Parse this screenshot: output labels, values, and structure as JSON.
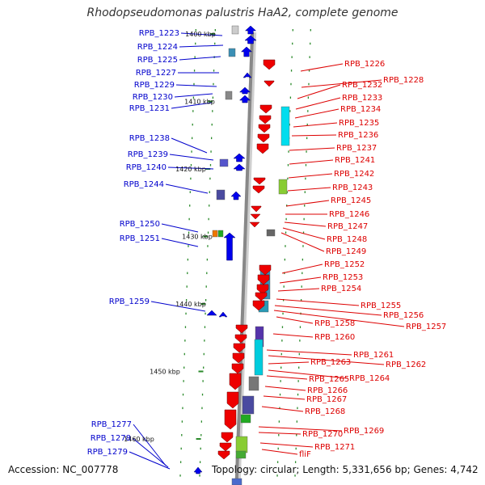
{
  "title": "Rhodopseudomonas palustris HaA2, complete genome",
  "accession": "Accession: NC_007778",
  "topology": "Topology: circular; Length: 5,331,656 bp; Genes: 4,742",
  "colors": {
    "forward": "#0000ee",
    "reverse": "#ee0000",
    "backbone": "#888888",
    "tick": "#2a8a2a",
    "link_blue": "#0000cc",
    "link_red": "#dd0000"
  },
  "kbp_labels": [
    "1400 kbp",
    "1410 kbp",
    "1420 kbp",
    "1430 kbp",
    "1440 kbp",
    "1450 kbp",
    "1460 kbp"
  ],
  "left_labels": [
    "RPB_1223",
    "RPB_1224",
    "RPB_1225",
    "RPB_1227",
    "RPB_1229",
    "RPB_1230",
    "RPB_1231",
    "RPB_1238",
    "RPB_1239",
    "RPB_1240",
    "RPB_1244",
    "RPB_1250",
    "RPB_1251",
    "RPB_1259",
    "RPB_1277",
    "RPB_1278",
    "RPB_1279"
  ],
  "right_labels": [
    "RPB_1226",
    "RPB_1228",
    "RPB_1232",
    "RPB_1233",
    "RPB_1234",
    "RPB_1235",
    "RPB_1236",
    "RPB_1237",
    "RPB_1241",
    "RPB_1242",
    "RPB_1243",
    "RPB_1245",
    "RPB_1246",
    "RPB_1247",
    "RPB_1248",
    "RPB_1249",
    "RPB_1252",
    "RPB_1253",
    "RPB_1254",
    "RPB_1255",
    "RPB_1256",
    "RPB_1257",
    "RPB_1258",
    "RPB_1260",
    "RPB_1261",
    "RPB_1262",
    "RPB_1263",
    "RPB_1264",
    "RPB_1265",
    "RPB_1266",
    "RPB_1267",
    "RPB_1268",
    "RPB_1269",
    "RPB_1270",
    "RPB_1271",
    "fliF"
  ]
}
